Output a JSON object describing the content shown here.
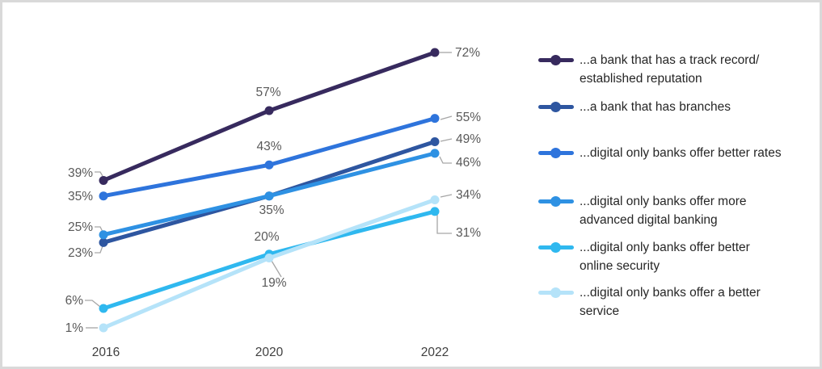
{
  "chart_data": {
    "type": "line",
    "title": "",
    "xlabel": "",
    "ylabel": "",
    "categories": [
      "2016",
      "2020",
      "2022"
    ],
    "unit": "%",
    "gridlines": false,
    "y_axis_visible": false,
    "legend_position": "right",
    "series": [
      {
        "name": "...a bank that has a track record/ established reputation",
        "label_lines": [
          "...a bank that has a track record/",
          "established reputation"
        ],
        "color": "#372A5E",
        "values": [
          39,
          57,
          72
        ],
        "data_labels": [
          "39%",
          "57%",
          "72%"
        ]
      },
      {
        "name": "...a bank that has branches",
        "label_lines": [
          "...a bank that has branches"
        ],
        "color": "#2E56A0",
        "values": [
          23,
          35,
          49
        ],
        "data_labels": [
          "23%",
          "35%",
          "49%"
        ]
      },
      {
        "name": "...digital only banks offer better rates",
        "label_lines": [
          "...digital only banks offer better rates"
        ],
        "color": "#2E74DC",
        "values": [
          35,
          43,
          55
        ],
        "data_labels": [
          "35%",
          "43%",
          "55%"
        ]
      },
      {
        "name": "...digital only banks offer more advanced digital banking",
        "label_lines": [
          "...digital only banks offer more",
          "advanced digital banking"
        ],
        "color": "#2E91E3",
        "values": [
          25,
          35,
          46
        ],
        "data_labels": [
          "25%",
          "",
          "46%"
        ]
      },
      {
        "name": "...digital only banks offer better online security",
        "label_lines": [
          "...digital only banks offer better",
          "online security"
        ],
        "color": "#2FB8EF",
        "values": [
          6,
          20,
          31
        ],
        "data_labels": [
          "6%",
          "20%",
          "31%"
        ]
      },
      {
        "name": "...digital only banks offer a better service",
        "label_lines": [
          "...digital only banks offer a better",
          "service"
        ],
        "color": "#B5E3F9",
        "values": [
          1,
          19,
          34
        ],
        "data_labels": [
          "1%",
          "19%",
          "34%"
        ]
      }
    ],
    "colors": {
      "data_label_text": "#595959",
      "leader_line": "#A6A6A6",
      "axis_text": "#3F3F3F",
      "frame_border": "#D9D9D9"
    }
  }
}
